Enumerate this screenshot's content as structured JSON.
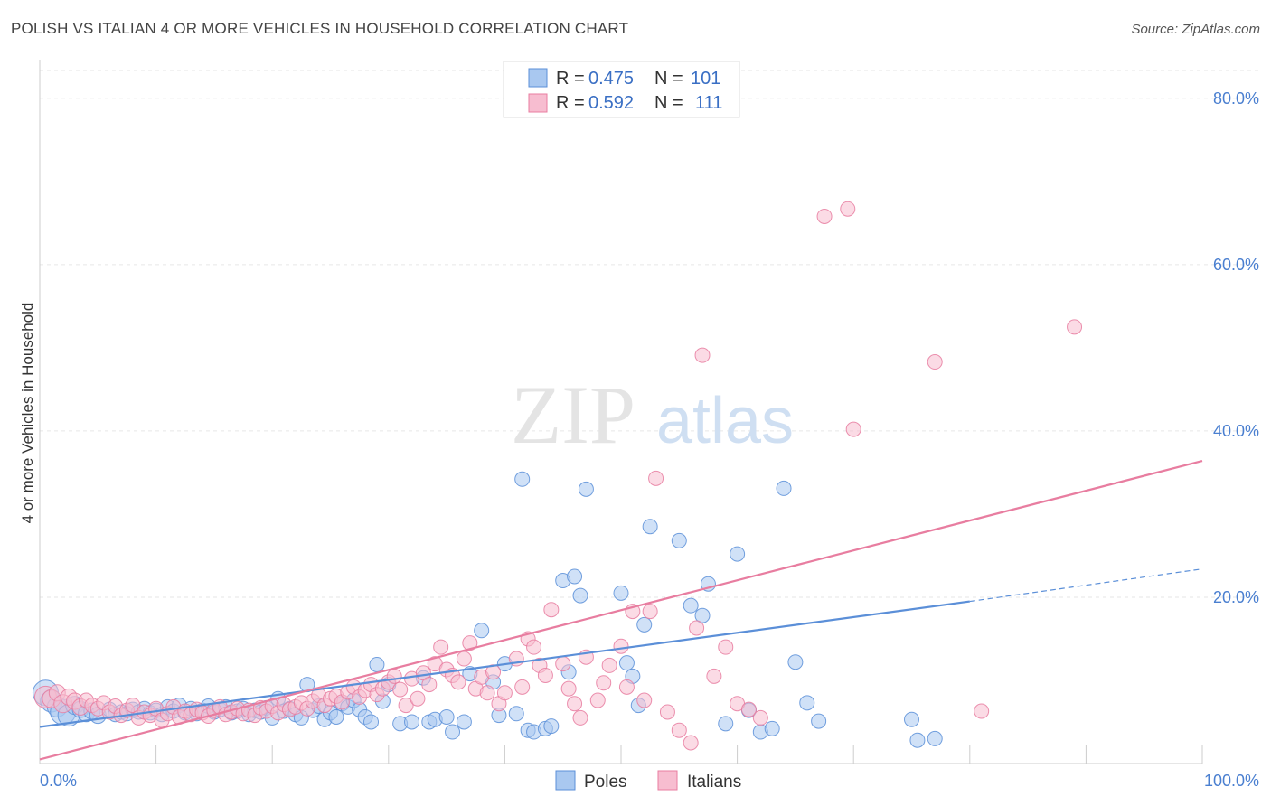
{
  "title": "POLISH VS ITALIAN 4 OR MORE VEHICLES IN HOUSEHOLD CORRELATION CHART",
  "source": "Source: ZipAtlas.com",
  "watermark": {
    "zip": "ZIP",
    "atlas": "atlas"
  },
  "legend": {
    "r_label": "R =",
    "n_label": "N =",
    "entries": [
      {
        "r": "0.475",
        "n": "101",
        "fill": "#a9c8f0",
        "stroke": "#5b8fd8"
      },
      {
        "r": "0.592",
        "n": "111",
        "fill": "#f7bdd0",
        "stroke": "#e87da0"
      }
    ]
  },
  "bottom_legend": [
    "Poles",
    "Italians"
  ],
  "chart_data": {
    "type": "scatter",
    "title": "POLISH VS ITALIAN 4 OR MORE VEHICLES IN HOUSEHOLD CORRELATION CHART",
    "xlabel": "",
    "ylabel": "4 or more Vehicles in Household",
    "xlim": [
      0,
      100
    ],
    "ylim": [
      0,
      84
    ],
    "x_tick_labels": [
      "0.0%",
      "100.0%"
    ],
    "y_ticks": [
      20,
      40,
      60,
      80
    ],
    "y_tick_labels": [
      "20.0%",
      "40.0%",
      "60.0%",
      "80.0%"
    ],
    "grid": true,
    "legend_position": "top-center",
    "series": [
      {
        "name": "Poles",
        "color": "#5b8fd8",
        "fill": "#a9c8f0",
        "r": 0.475,
        "n": 101,
        "trend": {
          "x0": 0,
          "y0": 4.4,
          "x1": 80,
          "y1": 19.5,
          "dashed_to_x": 100,
          "dashed_to_y": 23.4
        },
        "points": [
          [
            0.5,
            8.5,
            14
          ],
          [
            1,
            7.5,
            12
          ],
          [
            1.5,
            6.8,
            11
          ],
          [
            2,
            6.2,
            14
          ],
          [
            2.5,
            5.8,
            12
          ],
          [
            3,
            7,
            10
          ],
          [
            3.5,
            6.5,
            9
          ],
          [
            4,
            6,
            9
          ],
          [
            4.5,
            6.3,
            9
          ],
          [
            5,
            5.8,
            9
          ],
          [
            6,
            6.5,
            8
          ],
          [
            6.5,
            5.9,
            8
          ],
          [
            7,
            6.2,
            8
          ],
          [
            7.5,
            6,
            8
          ],
          [
            8,
            6.5,
            8
          ],
          [
            8.5,
            6.2,
            8
          ],
          [
            9,
            6.6,
            8
          ],
          [
            9.5,
            6.1,
            8
          ],
          [
            10,
            6.4,
            8
          ],
          [
            10.5,
            5.9,
            8
          ],
          [
            11,
            6.8,
            8
          ],
          [
            11.5,
            6.3,
            8
          ],
          [
            12,
            7,
            8
          ],
          [
            12.5,
            6.1,
            8
          ],
          [
            13,
            6.6,
            8
          ],
          [
            13.5,
            6,
            8
          ],
          [
            14,
            6.4,
            8
          ],
          [
            14.5,
            6.9,
            8
          ],
          [
            15,
            6.2,
            8
          ],
          [
            15.5,
            6.5,
            8
          ],
          [
            16,
            6.8,
            8
          ],
          [
            16.5,
            6.1,
            8
          ],
          [
            17,
            6.3,
            8
          ],
          [
            17.5,
            6.6,
            8
          ],
          [
            18,
            5.9,
            8
          ],
          [
            18.5,
            6.4,
            8
          ],
          [
            19,
            6.2,
            8
          ],
          [
            19.5,
            6.7,
            8
          ],
          [
            20,
            5.5,
            8
          ],
          [
            20.5,
            7.8,
            8
          ],
          [
            21,
            6.3,
            8
          ],
          [
            21.5,
            6.6,
            8
          ],
          [
            22,
            5.9,
            8
          ],
          [
            22.5,
            5.5,
            8
          ],
          [
            23,
            9.5,
            8
          ],
          [
            23.5,
            6.4,
            8
          ],
          [
            24,
            6.9,
            8
          ],
          [
            24.5,
            5.3,
            8
          ],
          [
            25,
            6.1,
            8
          ],
          [
            25.5,
            5.6,
            8
          ],
          [
            26,
            7.2,
            8
          ],
          [
            26.5,
            6.8,
            8
          ],
          [
            27,
            7.6,
            8
          ],
          [
            27.5,
            6.5,
            8
          ],
          [
            28,
            5.6,
            8
          ],
          [
            28.5,
            5,
            8
          ],
          [
            29,
            11.9,
            8
          ],
          [
            29.5,
            7.5,
            8
          ],
          [
            30,
            9.5,
            8
          ],
          [
            31,
            4.8,
            8
          ],
          [
            32,
            5,
            8
          ],
          [
            33,
            10.3,
            8
          ],
          [
            33.5,
            5,
            8
          ],
          [
            34,
            5.3,
            8
          ],
          [
            35,
            5.6,
            8
          ],
          [
            35.5,
            3.8,
            8
          ],
          [
            36.5,
            5,
            8
          ],
          [
            37,
            10.8,
            8
          ],
          [
            38,
            16,
            8
          ],
          [
            39,
            9.8,
            8
          ],
          [
            39.5,
            5.8,
            8
          ],
          [
            40,
            12,
            8
          ],
          [
            41,
            6,
            8
          ],
          [
            41.5,
            34.2,
            8
          ],
          [
            42,
            4,
            8
          ],
          [
            42.5,
            3.8,
            8
          ],
          [
            43.5,
            4.2,
            8
          ],
          [
            44,
            4.5,
            8
          ],
          [
            45,
            22,
            8
          ],
          [
            45.5,
            11,
            8
          ],
          [
            46,
            22.5,
            8
          ],
          [
            46.5,
            20.2,
            8
          ],
          [
            47,
            33,
            8
          ],
          [
            50,
            20.5,
            8
          ],
          [
            50.5,
            12.1,
            8
          ],
          [
            51,
            10.5,
            8
          ],
          [
            51.5,
            7,
            8
          ],
          [
            52,
            16.7,
            8
          ],
          [
            52.5,
            28.5,
            8
          ],
          [
            55,
            26.8,
            8
          ],
          [
            56,
            19,
            8
          ],
          [
            57,
            17.8,
            8
          ],
          [
            57.5,
            21.6,
            8
          ],
          [
            59,
            4.8,
            8
          ],
          [
            60,
            25.2,
            8
          ],
          [
            61,
            6.4,
            8
          ],
          [
            62,
            3.8,
            8
          ],
          [
            63,
            4.2,
            8
          ],
          [
            64,
            33.1,
            8
          ],
          [
            65,
            12.2,
            8
          ],
          [
            66,
            7.3,
            8
          ],
          [
            67,
            5.1,
            8
          ],
          [
            75,
            5.3,
            8
          ],
          [
            77,
            3,
            8
          ],
          [
            75.5,
            2.8,
            8
          ]
        ]
      },
      {
        "name": "Italians",
        "color": "#e87da0",
        "fill": "#f7bdd0",
        "r": 0.592,
        "n": 111,
        "trend": {
          "x0": 0,
          "y0": 0.5,
          "x1": 100,
          "y1": 36.4
        },
        "points": [
          [
            0.5,
            8,
            12
          ],
          [
            1,
            7.8,
            10
          ],
          [
            1.5,
            8.5,
            9
          ],
          [
            2,
            7.2,
            10
          ],
          [
            2.5,
            8,
            9
          ],
          [
            3,
            7.5,
            9
          ],
          [
            3.5,
            6.8,
            9
          ],
          [
            4,
            7.6,
            8
          ],
          [
            4.5,
            7,
            8
          ],
          [
            5,
            6.6,
            8
          ],
          [
            5.5,
            7.3,
            8
          ],
          [
            6,
            6.2,
            8
          ],
          [
            6.5,
            6.9,
            8
          ],
          [
            7,
            5.8,
            8
          ],
          [
            7.5,
            6.4,
            8
          ],
          [
            8,
            7,
            8
          ],
          [
            8.5,
            5.5,
            8
          ],
          [
            9,
            6.2,
            8
          ],
          [
            9.5,
            5.8,
            8
          ],
          [
            10,
            6.6,
            8
          ],
          [
            10.5,
            5.2,
            8
          ],
          [
            11,
            6,
            8
          ],
          [
            11.5,
            6.8,
            8
          ],
          [
            12,
            5.6,
            8
          ],
          [
            12.5,
            6.3,
            8
          ],
          [
            13,
            5.9,
            8
          ],
          [
            13.5,
            6.5,
            8
          ],
          [
            14,
            6.1,
            8
          ],
          [
            14.5,
            5.7,
            8
          ],
          [
            15,
            6.4,
            8
          ],
          [
            15.5,
            6.8,
            8
          ],
          [
            16,
            5.9,
            8
          ],
          [
            16.5,
            6.2,
            8
          ],
          [
            17,
            6.6,
            8
          ],
          [
            17.5,
            6,
            8
          ],
          [
            18,
            6.4,
            8
          ],
          [
            18.5,
            5.8,
            8
          ],
          [
            19,
            6.7,
            8
          ],
          [
            19.5,
            6.3,
            8
          ],
          [
            20,
            6.9,
            8
          ],
          [
            20.5,
            6.1,
            8
          ],
          [
            21,
            7.1,
            8
          ],
          [
            21.5,
            6.5,
            8
          ],
          [
            22,
            6.8,
            8
          ],
          [
            22.5,
            7.3,
            8
          ],
          [
            23,
            6.6,
            8
          ],
          [
            23.5,
            7.5,
            8
          ],
          [
            24,
            8.2,
            8
          ],
          [
            24.5,
            7,
            8
          ],
          [
            25,
            7.8,
            8
          ],
          [
            25.5,
            8.1,
            8
          ],
          [
            26,
            7.4,
            8
          ],
          [
            26.5,
            8.6,
            8
          ],
          [
            27,
            9.2,
            8
          ],
          [
            27.5,
            8,
            8
          ],
          [
            28,
            8.8,
            8
          ],
          [
            28.5,
            9.5,
            8
          ],
          [
            29,
            8.3,
            8
          ],
          [
            29.5,
            9,
            8
          ],
          [
            30,
            9.8,
            8
          ],
          [
            30.5,
            10.5,
            8
          ],
          [
            31,
            8.9,
            8
          ],
          [
            31.5,
            7,
            8
          ],
          [
            32,
            10.2,
            8
          ],
          [
            32.5,
            7.8,
            8
          ],
          [
            33,
            10.9,
            8
          ],
          [
            33.5,
            9.5,
            8
          ],
          [
            34,
            12,
            8
          ],
          [
            34.5,
            14,
            8
          ],
          [
            35,
            11.3,
            8
          ],
          [
            35.5,
            10.6,
            8
          ],
          [
            36,
            9.8,
            8
          ],
          [
            36.5,
            12.6,
            8
          ],
          [
            37,
            14.5,
            8
          ],
          [
            37.5,
            9,
            8
          ],
          [
            38,
            10.4,
            8
          ],
          [
            38.5,
            8.5,
            8
          ],
          [
            39,
            11,
            8
          ],
          [
            39.5,
            7.2,
            8
          ],
          [
            40,
            8.5,
            8
          ],
          [
            41,
            12.6,
            8
          ],
          [
            41.5,
            9.2,
            8
          ],
          [
            42,
            15,
            8
          ],
          [
            42.5,
            14,
            8
          ],
          [
            43,
            11.8,
            8
          ],
          [
            43.5,
            10.6,
            8
          ],
          [
            44,
            18.5,
            8
          ],
          [
            45,
            12,
            8
          ],
          [
            45.5,
            9,
            8
          ],
          [
            46,
            7.2,
            8
          ],
          [
            46.5,
            5.5,
            8
          ],
          [
            47,
            12.8,
            8
          ],
          [
            48,
            7.6,
            8
          ],
          [
            48.5,
            9.7,
            8
          ],
          [
            49,
            11.8,
            8
          ],
          [
            50,
            14.1,
            8
          ],
          [
            50.5,
            9.2,
            8
          ],
          [
            51,
            18.3,
            8
          ],
          [
            52,
            7.6,
            8
          ],
          [
            52.5,
            18.3,
            8
          ],
          [
            53,
            34.3,
            8
          ],
          [
            54,
            6.2,
            8
          ],
          [
            55,
            4,
            8
          ],
          [
            56,
            2.5,
            8
          ],
          [
            56.5,
            16.3,
            8
          ],
          [
            57,
            49.1,
            8
          ],
          [
            58,
            10.5,
            8
          ],
          [
            59,
            14,
            8
          ],
          [
            60,
            7.2,
            8
          ],
          [
            61,
            6.5,
            8
          ],
          [
            62,
            5.5,
            8
          ],
          [
            67.5,
            65.8,
            8
          ],
          [
            69.5,
            66.7,
            8
          ],
          [
            70,
            40.2,
            8
          ],
          [
            77,
            48.3,
            8
          ],
          [
            89,
            52.5,
            8
          ],
          [
            81,
            6.3,
            8
          ]
        ]
      }
    ]
  }
}
